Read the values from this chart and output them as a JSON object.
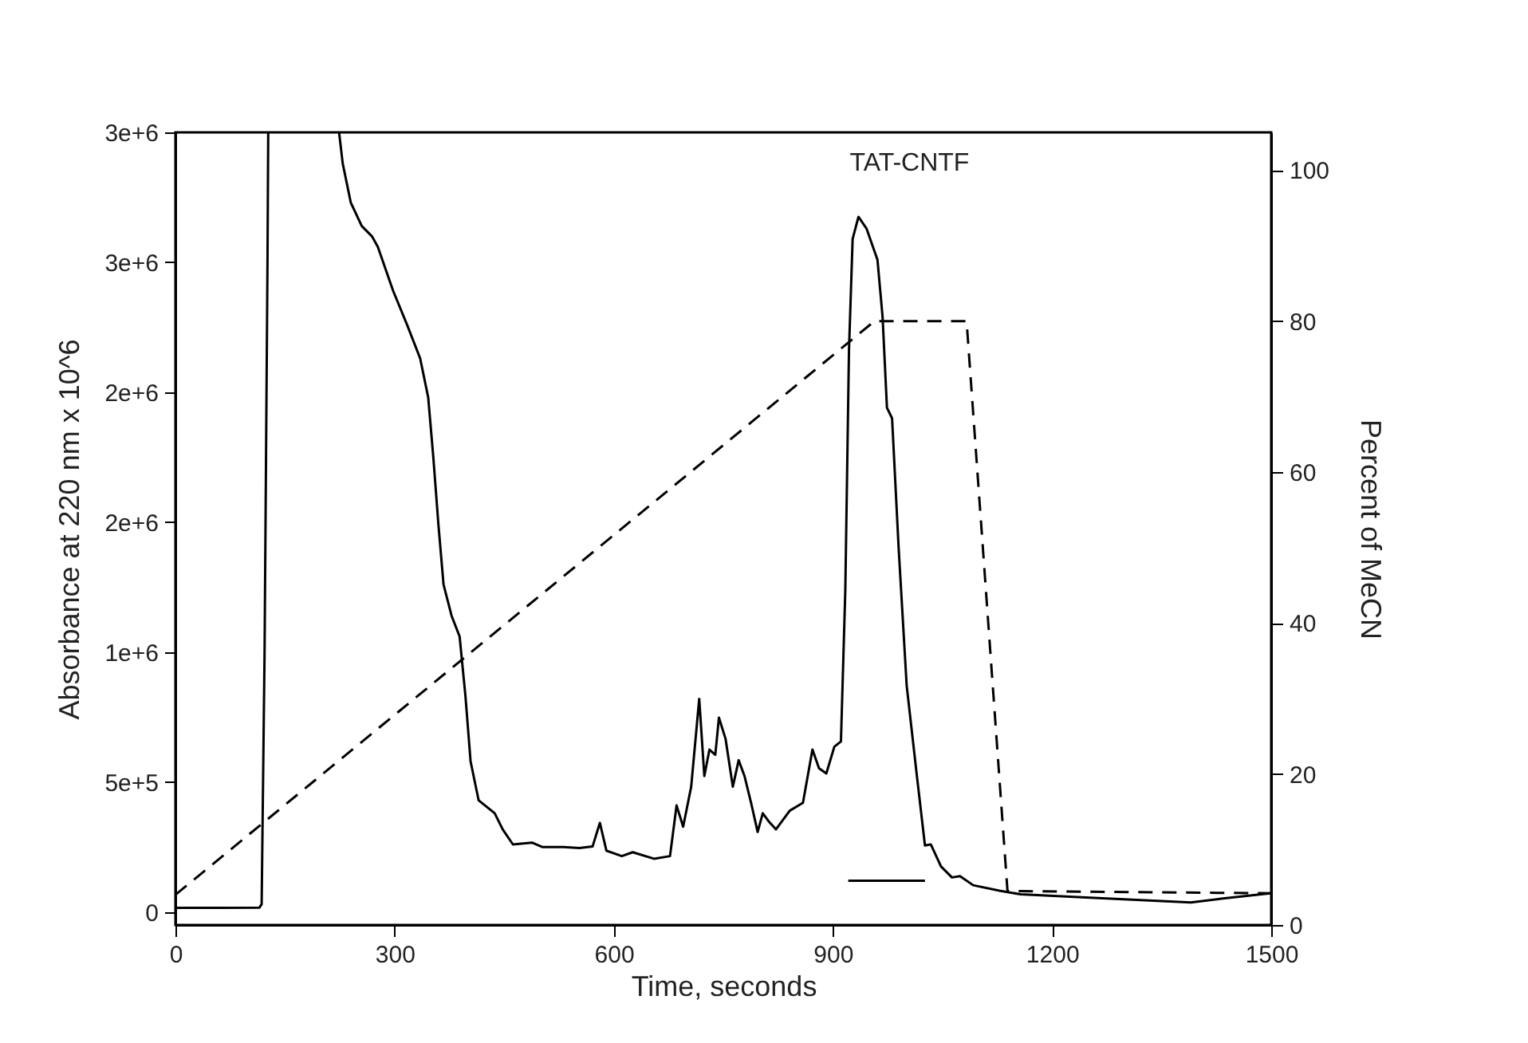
{
  "chart_data": {
    "type": "line",
    "xlabel": "Time, seconds",
    "ylabel": "Absorbance at 220 nm x 10^6",
    "y2label": "Percent of MeCN",
    "xlim": [
      0,
      1500
    ],
    "xticks": [
      0,
      300,
      600,
      900,
      1200,
      1500
    ],
    "ylim": [
      -50000,
      3000000
    ],
    "yticks": [
      0,
      {
        "value": 500000,
        "label": "5e+5"
      },
      {
        "value": 1000000,
        "label": "1e+6"
      },
      {
        "value": 1500000,
        "label": "2e+6"
      },
      {
        "value": 2000000,
        "label": "2e+6"
      },
      {
        "value": 2500000,
        "label": "3e+6"
      },
      {
        "value": 3000000,
        "label": "3e+6"
      }
    ],
    "y2lim": [
      0,
      105
    ],
    "y2ticks": [
      0,
      20,
      40,
      60,
      80,
      100
    ],
    "grid": false,
    "annotations": [
      {
        "text": "TAT-CNTF",
        "x": 935,
        "y": 2675000
      }
    ],
    "series": [
      {
        "color": "#000000",
        "line_style": "solid",
        "x": [
          0,
          60,
          115,
          118,
          122,
          126,
          127,
          175,
          224,
          229,
          240,
          255,
          269,
          277,
          298,
          317,
          335,
          346,
          353,
          360,
          367,
          378,
          389,
          397,
          404,
          415,
          437,
          448,
          462,
          488,
          502,
          531,
          553,
          571,
          581,
          590,
          611,
          626,
          655,
          677,
          686,
          695,
          706,
          717,
          724,
          731,
          739,
          744,
          753,
          763,
          771,
          779,
          788,
          797,
          804,
          812,
          822,
          841,
          859,
          872,
          881,
          891,
          902,
          911,
          917,
          922,
          927,
          935,
          946,
          961,
          968,
          974,
          981,
          990,
          1001,
          1015,
          1026,
          1034,
          1048,
          1063,
          1074,
          1092,
          1128,
          1157,
          1252,
          1390,
          1434,
          1499
        ],
        "values": [
          16000,
          16000,
          17000,
          30000,
          1000000,
          2500000,
          3000000,
          null,
          3000000,
          2880000,
          2730000,
          2640000,
          2600000,
          2560000,
          2390000,
          2260000,
          2130000,
          1980000,
          1750000,
          1490000,
          1260000,
          1140000,
          1060000,
          830000,
          580000,
          430000,
          380000,
          318000,
          260000,
          267000,
          250000,
          250000,
          246000,
          252000,
          343000,
          236000,
          215000,
          230000,
          205000,
          215000,
          410000,
          328000,
          482000,
          820000,
          523000,
          625000,
          605000,
          748000,
          667000,
          482000,
          584000,
          523000,
          420000,
          308000,
          380000,
          349000,
          318000,
          390000,
          420000,
          625000,
          553000,
          533000,
          636000,
          656000,
          1240000,
          2160000,
          2590000,
          2675000,
          2630000,
          2510000,
          2290000,
          1940000,
          1900000,
          1400000,
          871000,
          523000,
          256000,
          260000,
          175000,
          133000,
          138000,
          103000,
          82000,
          68000,
          55000,
          37000,
          52000,
          72000
        ]
      },
      {
        "color": "#000000",
        "line_style": "dashed",
        "axis": "y2",
        "x": [
          0,
          957,
          1083,
          1139,
          1500
        ],
        "values": [
          4,
          80,
          80,
          4.5,
          4.2
        ]
      },
      {
        "color": "#000000",
        "line_style": "solid",
        "x": [
          921,
          1026
        ],
        "values": [
          120000,
          120000
        ]
      }
    ]
  }
}
